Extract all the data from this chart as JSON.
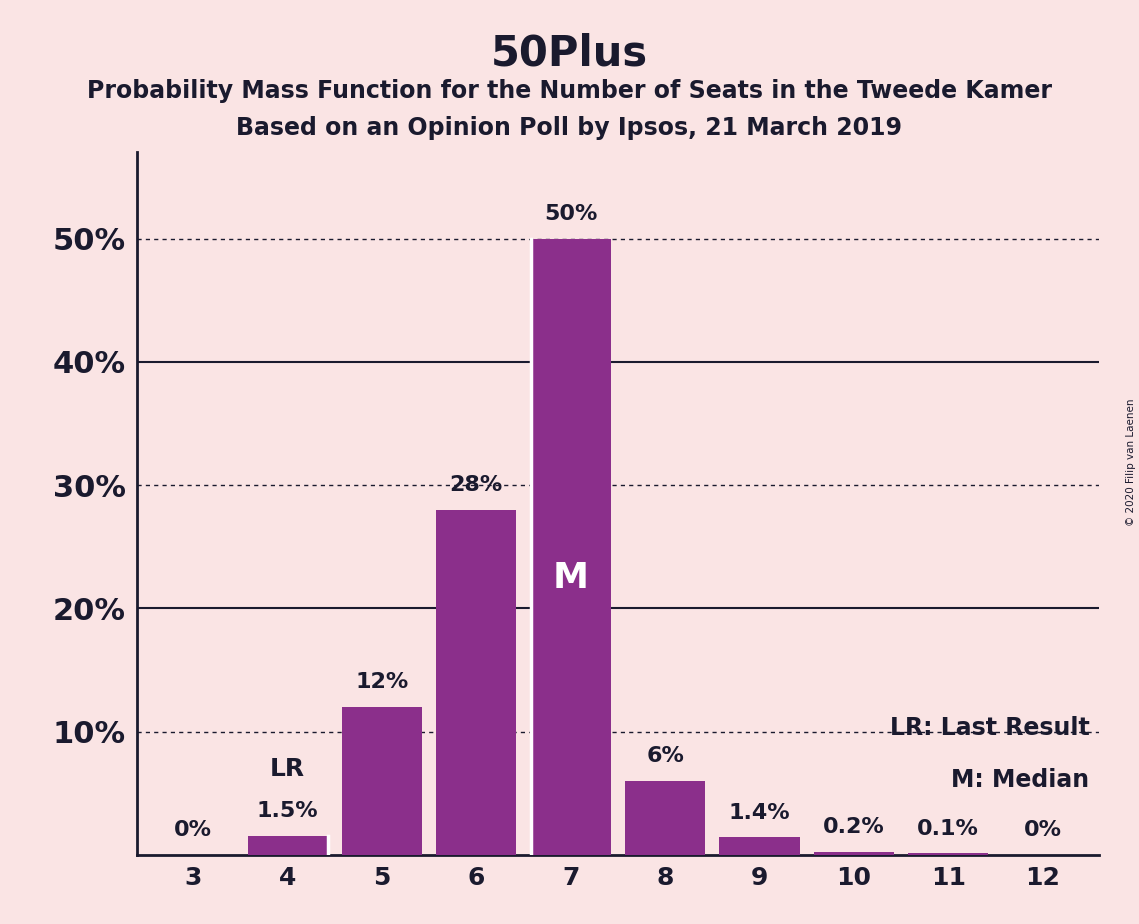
{
  "title": "50Plus",
  "subtitle1": "Probability Mass Function for the Number of Seats in the Tweede Kamer",
  "subtitle2": "Based on an Opinion Poll by Ipsos, 21 March 2019",
  "categories": [
    3,
    4,
    5,
    6,
    7,
    8,
    9,
    10,
    11,
    12
  ],
  "values": [
    0.0,
    1.5,
    12.0,
    28.0,
    50.0,
    6.0,
    1.4,
    0.2,
    0.1,
    0.0
  ],
  "bar_color": "#8B2F8B",
  "background_color": "#FAE4E4",
  "bar_labels": [
    "0%",
    "1.5%",
    "12%",
    "28%",
    "50%",
    "6%",
    "1.4%",
    "0.2%",
    "0.1%",
    "0%"
  ],
  "ylim": [
    0,
    57
  ],
  "yticks": [
    0,
    10,
    20,
    30,
    40,
    50
  ],
  "ytick_labels": [
    "",
    "10%",
    "20%",
    "30%",
    "40%",
    "50%"
  ],
  "legend_lr": "LR: Last Result",
  "legend_m": "M: Median",
  "median_bar": 7,
  "last_result_bar": 4,
  "last_result_label": "LR",
  "median_label": "M",
  "dotted_lines": [
    10.0,
    30.0,
    50.0
  ],
  "solid_lines": [
    20.0,
    40.0
  ],
  "watermark": "© 2020 Filip van Laenen",
  "title_fontsize": 30,
  "subtitle_fontsize": 17,
  "tick_fontsize": 18,
  "bar_label_fontsize": 16,
  "legend_fontsize": 17,
  "ytick_fontsize": 22
}
